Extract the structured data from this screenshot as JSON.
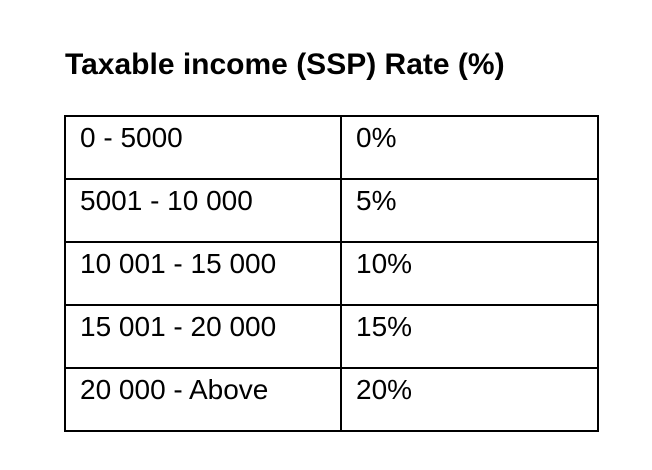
{
  "title": "Taxable income (SSP) Rate (%)",
  "table": {
    "rows": [
      {
        "range": "0 - 5000",
        "rate": "0%"
      },
      {
        "range": "5001 - 10 000",
        "rate": "5%"
      },
      {
        "range": "10 001 - 15 000",
        "rate": "10%"
      },
      {
        "range": "15 001 - 20 000",
        "rate": "15%"
      },
      {
        "range": "20 000 - Above",
        "rate": "20%"
      }
    ]
  },
  "colors": {
    "background": "#ffffff",
    "text": "#000000",
    "border": "#000000"
  }
}
